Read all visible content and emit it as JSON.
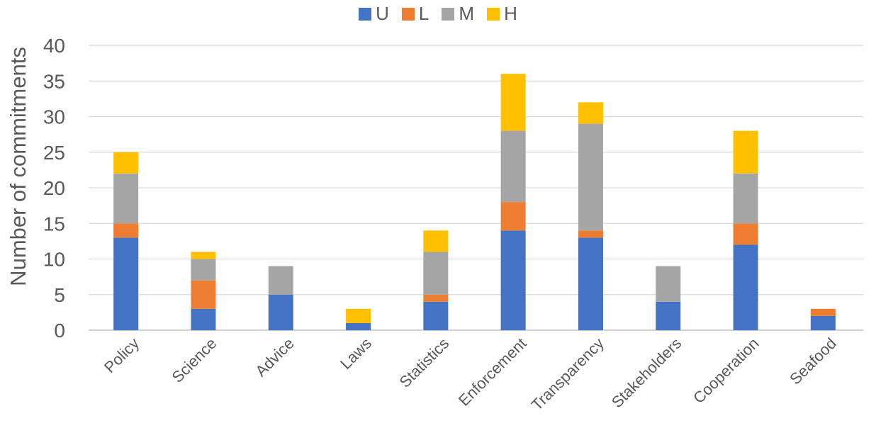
{
  "chart_data": {
    "type": "bar",
    "stacked": true,
    "title": "",
    "xlabel": "",
    "ylabel": "Number of commitments",
    "ylim": [
      0,
      40
    ],
    "yticks": [
      0,
      5,
      10,
      15,
      20,
      25,
      30,
      35,
      40
    ],
    "grid": true,
    "legend_position": "top",
    "categories": [
      "Policy",
      "Science",
      "Advice",
      "Laws",
      "Statistics",
      "Enforcement",
      "Transparency",
      "Stakeholders",
      "Cooperation",
      "Seafood"
    ],
    "series": [
      {
        "name": "U",
        "color": "#4472C4",
        "values": [
          13,
          3,
          5,
          1,
          4,
          14,
          13,
          4,
          12,
          2
        ]
      },
      {
        "name": "L",
        "color": "#ED7D31",
        "values": [
          2,
          4,
          0,
          0,
          1,
          4,
          1,
          0,
          3,
          1
        ]
      },
      {
        "name": "M",
        "color": "#A5A5A5",
        "values": [
          7,
          3,
          4,
          0,
          6,
          10,
          15,
          5,
          7,
          0
        ]
      },
      {
        "name": "H",
        "color": "#FFC000",
        "values": [
          3,
          1,
          0,
          2,
          3,
          8,
          3,
          0,
          6,
          0
        ]
      }
    ]
  }
}
